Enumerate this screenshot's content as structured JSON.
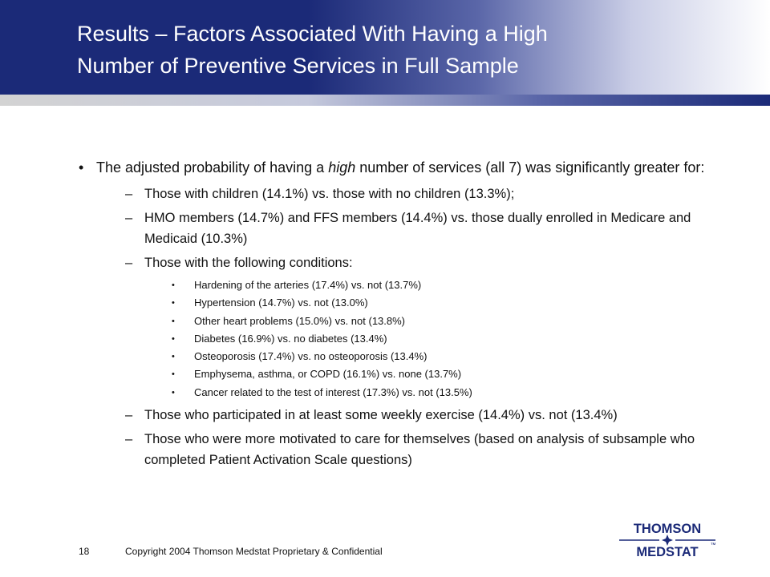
{
  "header": {
    "title_line1": "Results – Factors Associated With Having a High",
    "title_line2": "Number of Preventive Services in Full Sample"
  },
  "body": {
    "intro_pre": "The adjusted probability of having a ",
    "intro_em": "high",
    "intro_post": " number of services (all 7) was significantly greater for:",
    "bullet_char": "•",
    "dash_char": "–",
    "items": [
      "Those with children (14.1%) vs. those with no children (13.3%);",
      "HMO members (14.7%) and FFS members (14.4%) vs. those dually enrolled in Medicare and Medicaid (10.3%)",
      "Those with the following conditions:"
    ],
    "conditions": [
      "Hardening of the arteries (17.4%) vs. not (13.7%)",
      "Hypertension (14.7%) vs. not (13.0%)",
      "Other heart problems (15.0%) vs. not (13.8%)",
      "Diabetes (16.9%) vs. no diabetes (13.4%)",
      "Osteoporosis (17.4%) vs. no osteoporosis (13.4%)",
      "Emphysema, asthma, or COPD (16.1%) vs. none (13.7%)",
      "Cancer related to the test of interest (17.3%) vs. not (13.5%)"
    ],
    "items_after": [
      "Those who participated in at least some weekly exercise (14.4%) vs. not (13.4%)",
      "Those who were more motivated to care for themselves (based on analysis of subsample who completed Patient Activation Scale questions)"
    ]
  },
  "footer": {
    "page_number": "18",
    "copyright": "Copyright 2004 Thomson Medstat  Proprietary & Confidential"
  },
  "logo": {
    "line1": "THOMSON",
    "line2": "MEDSTAT",
    "tm": "™",
    "color": "#1b2a78"
  }
}
